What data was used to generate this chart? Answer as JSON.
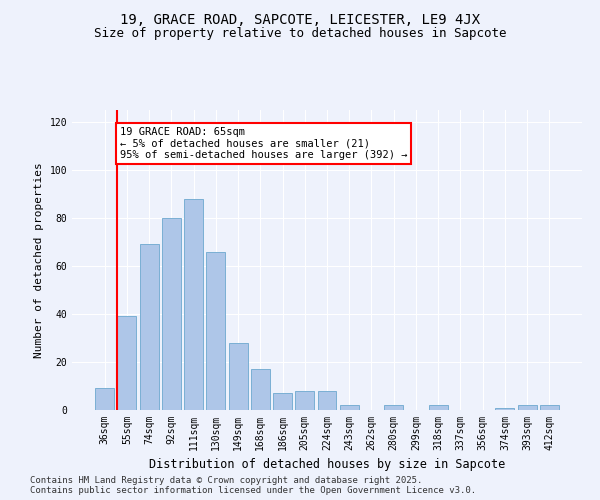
{
  "title1": "19, GRACE ROAD, SAPCOTE, LEICESTER, LE9 4JX",
  "title2": "Size of property relative to detached houses in Sapcote",
  "xlabel": "Distribution of detached houses by size in Sapcote",
  "ylabel": "Number of detached properties",
  "categories": [
    "36sqm",
    "55sqm",
    "74sqm",
    "92sqm",
    "111sqm",
    "130sqm",
    "149sqm",
    "168sqm",
    "186sqm",
    "205sqm",
    "224sqm",
    "243sqm",
    "262sqm",
    "280sqm",
    "299sqm",
    "318sqm",
    "337sqm",
    "356sqm",
    "374sqm",
    "393sqm",
    "412sqm"
  ],
  "values": [
    9,
    39,
    69,
    80,
    88,
    66,
    28,
    17,
    7,
    8,
    8,
    2,
    0,
    2,
    0,
    2,
    0,
    0,
    1,
    2,
    2
  ],
  "bar_color": "#aec6e8",
  "bar_edge_color": "#7aafd4",
  "red_line_index": 1,
  "annotation_text": "19 GRACE ROAD: 65sqm\n← 5% of detached houses are smaller (21)\n95% of semi-detached houses are larger (392) →",
  "annotation_box_color": "white",
  "annotation_border_color": "red",
  "red_line_color": "red",
  "ylim": [
    0,
    125
  ],
  "yticks": [
    0,
    20,
    40,
    60,
    80,
    100,
    120
  ],
  "background_color": "#eef2fc",
  "grid_color": "white",
  "footer_line1": "Contains HM Land Registry data © Crown copyright and database right 2025.",
  "footer_line2": "Contains public sector information licensed under the Open Government Licence v3.0.",
  "title1_fontsize": 10,
  "title2_fontsize": 9,
  "xlabel_fontsize": 8.5,
  "ylabel_fontsize": 8,
  "tick_fontsize": 7,
  "annotation_fontsize": 7.5,
  "footer_fontsize": 6.5
}
